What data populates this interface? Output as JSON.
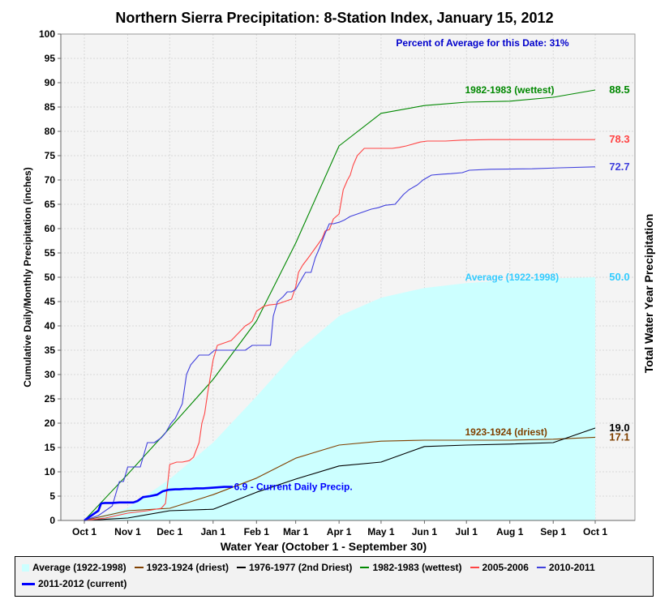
{
  "chart_data": {
    "type": "line",
    "title": "Northern Sierra Precipitation: 8-Station Index, January 15, 2012",
    "subtitle": "Percent of Average for this Date: 31%",
    "xlabel": "Water Year (October 1 - September 30)",
    "ylabel": "Cumulative Daily/Monthly Precipitation (inches)",
    "y2label": "Total Water Year Precipitation",
    "ylim": [
      0,
      100
    ],
    "yticks": [
      "0",
      "5",
      "10",
      "15",
      "20",
      "25",
      "30",
      "35",
      "40",
      "45",
      "50",
      "55",
      "60",
      "65",
      "70",
      "75",
      "80",
      "85",
      "90",
      "95",
      "100"
    ],
    "xlim": [
      0,
      365
    ],
    "xticks": [
      {
        "label": "Oct 1",
        "day": 0
      },
      {
        "label": "Nov 1",
        "day": 31
      },
      {
        "label": "Dec 1",
        "day": 61
      },
      {
        "label": "Jan 1",
        "day": 92
      },
      {
        "label": "Feb 1",
        "day": 123
      },
      {
        "label": "Mar 1",
        "day": 151
      },
      {
        "label": "Apr 1",
        "day": 182
      },
      {
        "label": "May 1",
        "day": 212
      },
      {
        "label": "Jun 1",
        "day": 243
      },
      {
        "label": "Jul 1",
        "day": 273
      },
      {
        "label": "Aug 1",
        "day": 304
      },
      {
        "label": "Sep 1",
        "day": 335
      },
      {
        "label": "Oct 1",
        "day": 365
      }
    ],
    "grid": true,
    "series": [
      {
        "name": "Average (1922-1998)",
        "color": "#ccffff",
        "style": "area",
        "x": [
          0,
          31,
          61,
          92,
          123,
          151,
          182,
          212,
          243,
          273,
          304,
          335,
          365
        ],
        "values": [
          0,
          2.5,
          8.5,
          16,
          25.5,
          34.5,
          42,
          45.8,
          47.8,
          48.8,
          49.4,
          49.8,
          50.0
        ]
      },
      {
        "name": "1923-1924 (driest)",
        "color": "#804000",
        "x": [
          0,
          31,
          61,
          92,
          123,
          151,
          182,
          212,
          243,
          273,
          304,
          335,
          365
        ],
        "values": [
          0,
          2.0,
          2.5,
          5.3,
          8.7,
          12.8,
          15.5,
          16.3,
          16.5,
          16.5,
          16.5,
          16.7,
          17.1
        ]
      },
      {
        "name": "1976-1977 (2nd Driest)",
        "color": "#000000",
        "x": [
          0,
          31,
          61,
          92,
          123,
          151,
          182,
          212,
          243,
          273,
          304,
          335,
          365
        ],
        "values": [
          0,
          0.5,
          2.0,
          2.3,
          5.8,
          8.5,
          11.2,
          12.0,
          15.2,
          15.5,
          15.7,
          16.0,
          19.0
        ]
      },
      {
        "name": "1982-1983 (wettest)",
        "color": "#008800",
        "x": [
          0,
          31,
          61,
          92,
          123,
          151,
          182,
          212,
          243,
          273,
          304,
          335,
          365
        ],
        "values": [
          0,
          9.5,
          19,
          29,
          41,
          57,
          77,
          83.7,
          85.3,
          86,
          86.2,
          87,
          88.5
        ]
      },
      {
        "name": "2005-2006",
        "color": "#ff4444",
        "x": [
          0,
          15,
          31,
          45,
          55,
          58,
          61,
          66,
          70,
          75,
          78,
          82,
          84,
          86,
          88,
          92,
          95,
          100,
          105,
          110,
          115,
          118,
          120,
          123,
          128,
          132,
          138,
          143,
          148,
          151,
          153,
          156,
          160,
          165,
          170,
          172,
          175,
          178,
          182,
          185,
          188,
          190,
          192,
          195,
          200,
          205,
          210,
          220,
          225,
          230,
          240,
          245,
          250,
          258,
          270,
          290,
          320,
          365
        ],
        "values": [
          0,
          0.5,
          1.5,
          2.0,
          2.5,
          3.5,
          11.5,
          12,
          12,
          12.3,
          13,
          16,
          20,
          22,
          26,
          33,
          36,
          36.5,
          37,
          38.5,
          40,
          40.5,
          41,
          43,
          44,
          44.3,
          44.5,
          45,
          45.5,
          48,
          51,
          52.5,
          54,
          56,
          58,
          59.5,
          59.8,
          62,
          63,
          68,
          70,
          71,
          73,
          75,
          76.5,
          76.5,
          76.5,
          76.5,
          76.7,
          77,
          77.8,
          78,
          78,
          78,
          78.2,
          78.3,
          78.3,
          78.3
        ]
      },
      {
        "name": "2010-2011",
        "color": "#4040dd",
        "x": [
          0,
          10,
          20,
          25,
          28,
          31,
          35,
          40,
          45,
          50,
          55,
          58,
          62,
          65,
          70,
          73,
          76,
          79,
          82,
          86,
          89,
          93,
          100,
          110,
          115,
          120,
          123,
          128,
          133,
          135,
          138,
          142,
          145,
          148,
          151,
          154,
          158,
          162,
          165,
          168,
          172,
          175,
          178,
          182,
          186,
          190,
          195,
          200,
          205,
          210,
          215,
          222,
          228,
          232,
          238,
          242,
          248,
          256,
          262,
          270,
          275,
          290,
          320,
          340,
          365
        ],
        "values": [
          0,
          1.0,
          3,
          8,
          8,
          11,
          11,
          11,
          16,
          16,
          17,
          18,
          20,
          21,
          24,
          30,
          32,
          33,
          34,
          34,
          34,
          35,
          35,
          35,
          35,
          36,
          36,
          36,
          36,
          42,
          45,
          46,
          47,
          47,
          47.5,
          49,
          51,
          51,
          54,
          56,
          59,
          61,
          61,
          61.3,
          61.8,
          62.5,
          63,
          63.5,
          64,
          64.3,
          64.8,
          65,
          67,
          68,
          69,
          70,
          71,
          71.2,
          71.3,
          71.5,
          72,
          72.2,
          72.3,
          72.5,
          72.7
        ]
      },
      {
        "name": "2011-2012 (current)",
        "color": "#0000ff",
        "bold": true,
        "x": [
          0,
          5,
          10,
          12,
          15,
          20,
          25,
          30,
          35,
          38,
          42,
          47,
          52,
          56,
          60,
          65,
          68,
          72,
          76,
          80,
          85,
          90,
          95,
          100,
          106
        ],
        "values": [
          0,
          1.0,
          2.0,
          3.5,
          3.6,
          3.6,
          3.7,
          3.7,
          3.7,
          4.0,
          4.8,
          5.0,
          5.3,
          6.0,
          6.3,
          6.4,
          6.4,
          6.5,
          6.5,
          6.6,
          6.6,
          6.7,
          6.8,
          6.9,
          6.9
        ]
      }
    ],
    "annotations": [
      {
        "text": "1982-1983 (wettest)",
        "x": 272,
        "y": 88.5,
        "color": "#008800"
      },
      {
        "text": "88.5",
        "x": 375,
        "y": 88.5,
        "color": "#008800"
      },
      {
        "text": "78.3",
        "x": 375,
        "y": 78.3,
        "color": "#ff4444"
      },
      {
        "text": "72.7",
        "x": 375,
        "y": 72.7,
        "color": "#4040dd"
      },
      {
        "text": "Average (1922-1998)",
        "x": 272,
        "y": 50,
        "color": "#33ccff"
      },
      {
        "text": "50.0",
        "x": 375,
        "y": 50,
        "color": "#33ccff"
      },
      {
        "text": "1923-1924 (driest)",
        "x": 272,
        "y": 18.2,
        "color": "#804000"
      },
      {
        "text": "19.0",
        "x": 375,
        "y": 19.0,
        "color": "#000000"
      },
      {
        "text": "17.1",
        "x": 375,
        "y": 17.1,
        "color": "#804000"
      },
      {
        "text": "6.9 -  Current Daily Precip.",
        "x": 107,
        "y": 6.9,
        "color": "#0000ff"
      }
    ],
    "legend_position": "bottom"
  },
  "legend": {
    "row1": [
      {
        "label": "Average (1922-1998)",
        "color": "#ccffff"
      },
      {
        "label": "1923-1924 (driest)",
        "color": "#804000"
      },
      {
        "label": "1976-1977 (2nd Driest)",
        "color": "#000000"
      },
      {
        "label": "1982-1983 (wettest)",
        "color": "#008800"
      },
      {
        "label": "2005-2006",
        "color": "#ff4444"
      },
      {
        "label": "2010-2011",
        "color": "#4040dd"
      }
    ],
    "row2": [
      {
        "label": "2011-2012 (current)",
        "color": "#0000ff"
      }
    ]
  }
}
